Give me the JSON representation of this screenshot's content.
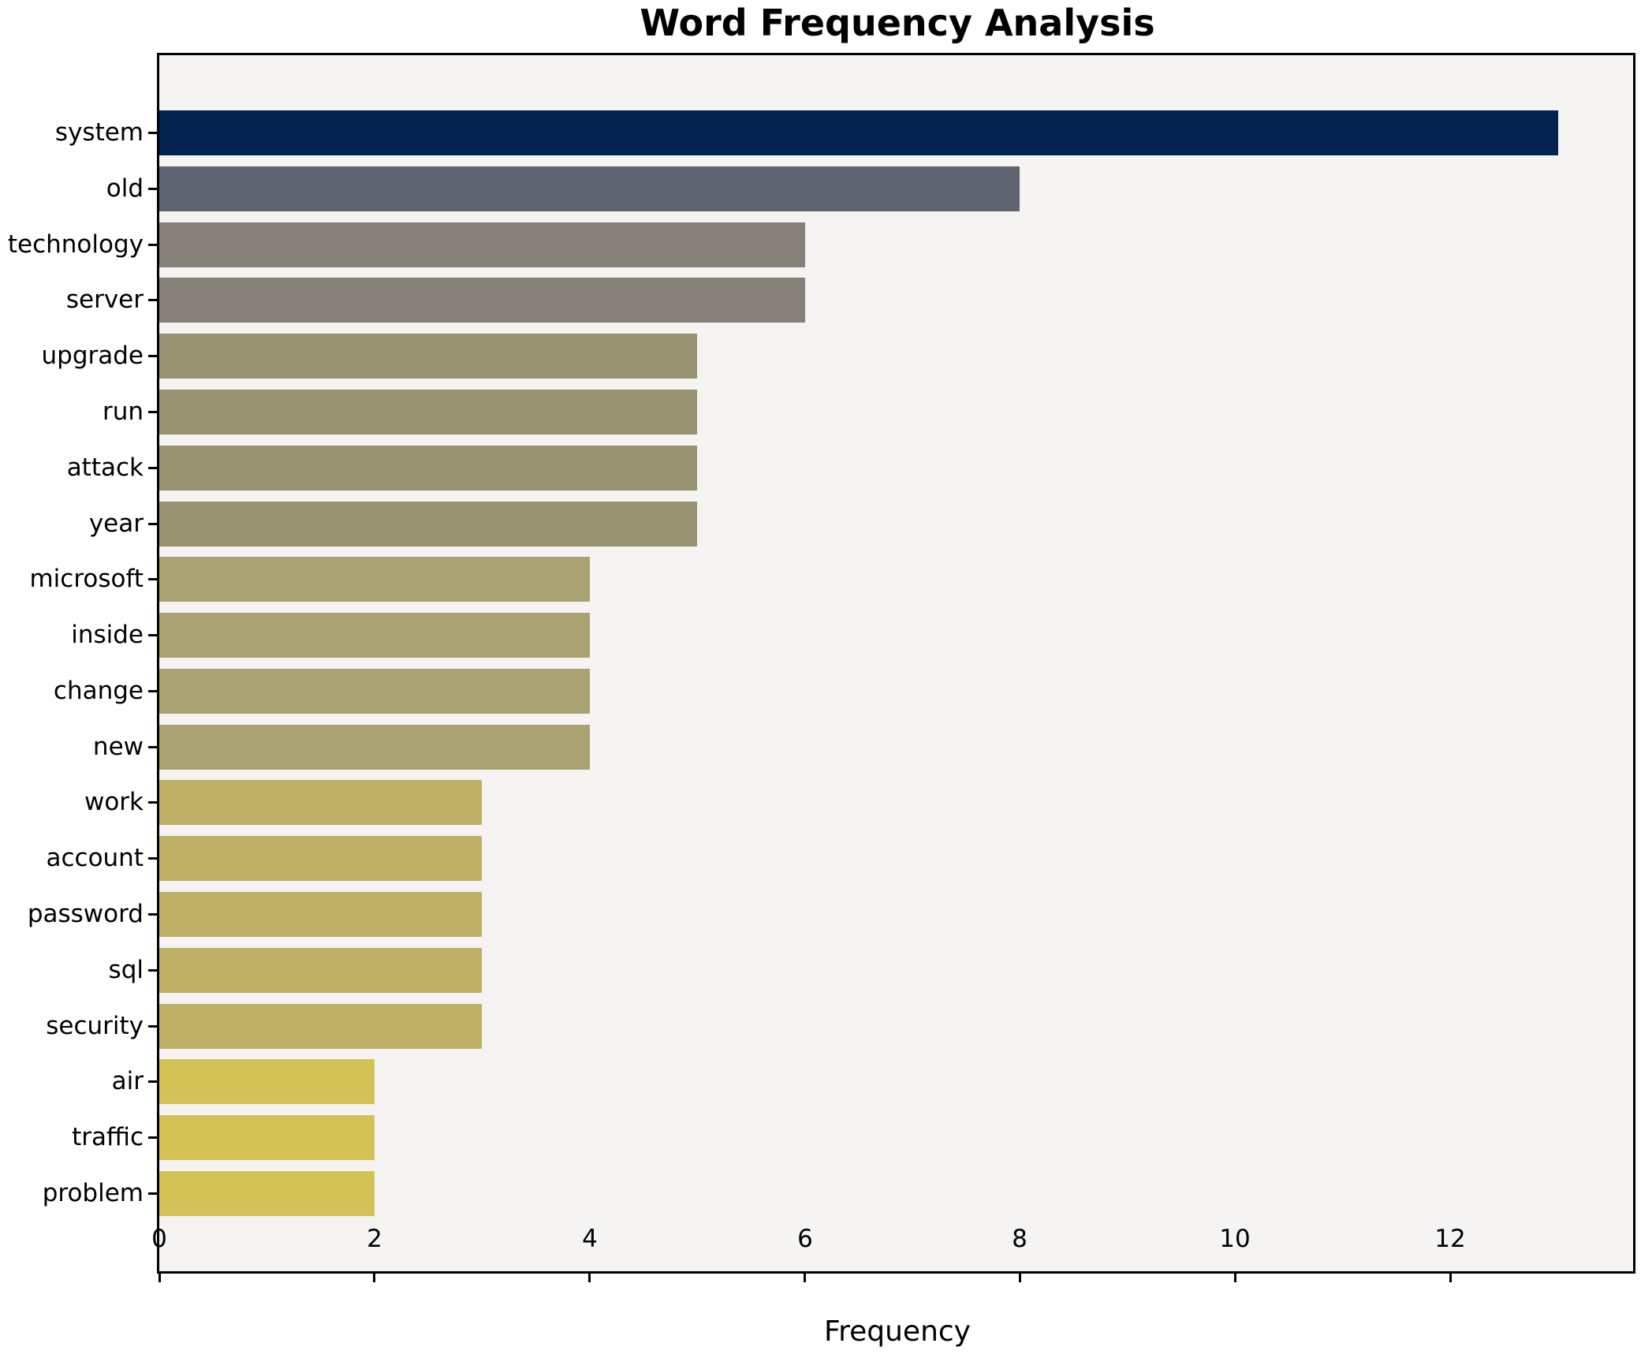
{
  "chart_data": {
    "type": "bar",
    "orientation": "horizontal",
    "title": "Word Frequency Analysis",
    "xlabel": "Frequency",
    "ylabel": "",
    "categories": [
      "system",
      "old",
      "technology",
      "server",
      "upgrade",
      "run",
      "attack",
      "year",
      "microsoft",
      "inside",
      "change",
      "new",
      "work",
      "account",
      "password",
      "sql",
      "security",
      "air",
      "traffic",
      "problem"
    ],
    "values": [
      13,
      8,
      6,
      6,
      5,
      5,
      5,
      5,
      4,
      4,
      4,
      4,
      3,
      3,
      3,
      3,
      3,
      2,
      2,
      2
    ],
    "bar_colors": [
      "#022350",
      "#5f6372",
      "#85817a",
      "#85817a",
      "#999270",
      "#999270",
      "#999270",
      "#999270",
      "#aba271",
      "#aba271",
      "#aba271",
      "#aba271",
      "#bfb067",
      "#bfb067",
      "#bfb067",
      "#bfb067",
      "#bfb067",
      "#d5c257",
      "#d5c257",
      "#d5c257"
    ],
    "xticks": [
      0,
      2,
      4,
      6,
      8,
      10,
      12
    ],
    "xlim": [
      0,
      13.7
    ],
    "grid": false,
    "legend": "none",
    "plot_background": "#f5f4f2",
    "figure_background": "#ffffff",
    "text_color": "#000000"
  }
}
